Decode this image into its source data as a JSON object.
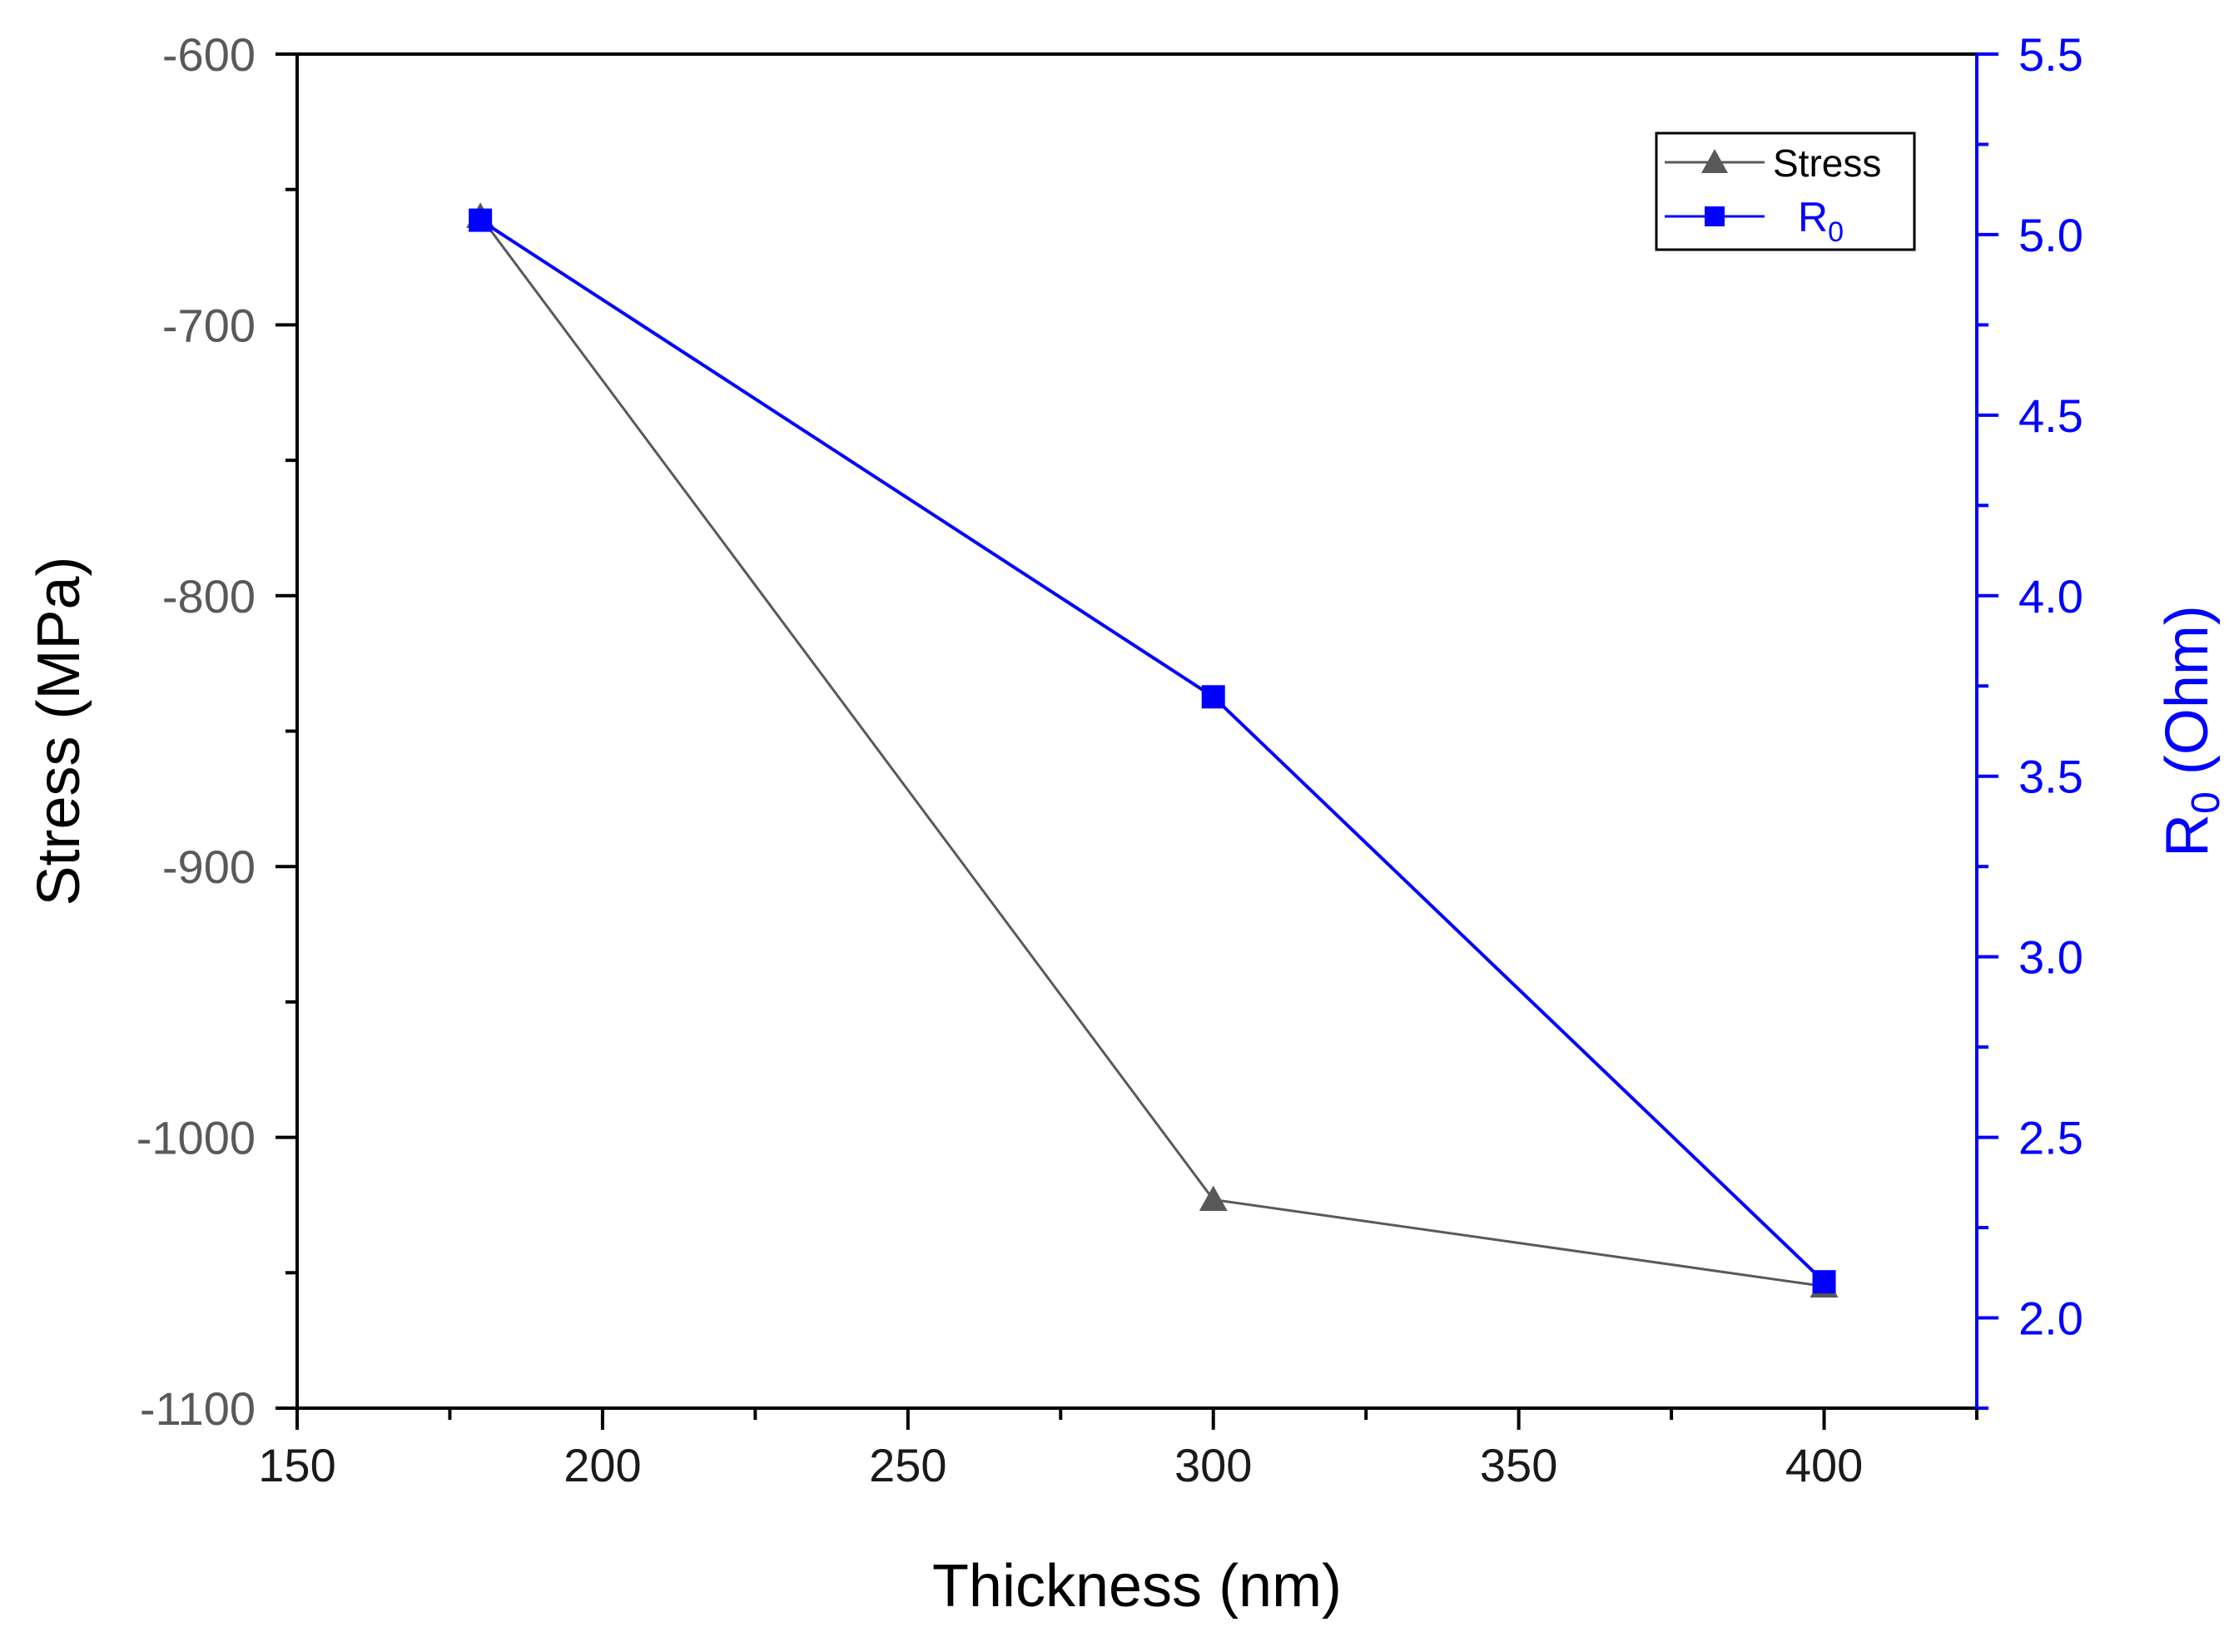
{
  "chart_data": {
    "type": "line",
    "x_axis": {
      "label": "Thickness (nm)",
      "range": [
        150,
        425
      ],
      "major_ticks": [
        150,
        200,
        250,
        300,
        350,
        400
      ],
      "tick_labels": [
        "150",
        "200",
        "250",
        "300",
        "350",
        "400"
      ],
      "minor_step": 25
    },
    "y_axis_left": {
      "label": "Stress (MPa)",
      "range": [
        -1100,
        -600
      ],
      "major_ticks": [
        -600,
        -700,
        -800,
        -900,
        -1000,
        -1100
      ],
      "tick_labels": [
        "-600",
        "-700",
        "-800",
        "-900",
        "-1000",
        "-1100"
      ],
      "minor_step": 50
    },
    "y_axis_right": {
      "label_main": "R",
      "label_sub": "0",
      "label_rest": " (Ohm)",
      "range": [
        1.75,
        5.5
      ],
      "major_ticks": [
        2.0,
        2.5,
        3.0,
        3.5,
        4.0,
        4.5,
        5.0,
        5.5
      ],
      "tick_labels": [
        "2.0",
        "2.5",
        "3.0",
        "3.5",
        "4.0",
        "4.5",
        "5.0",
        "5.5"
      ],
      "minor_step": 0.25
    },
    "series": [
      {
        "name": "Stress",
        "axis": "left",
        "marker": "triangle",
        "color": "#595959",
        "x": [
          180,
          300,
          400
        ],
        "y": [
          -660,
          -1023,
          -1055
        ]
      },
      {
        "name": "R",
        "name_sub": "0",
        "axis": "right",
        "marker": "square",
        "color": "#0000ff",
        "x": [
          180,
          300,
          400
        ],
        "y": [
          5.04,
          3.72,
          2.1
        ]
      }
    ],
    "legend": {
      "position": "top-right",
      "entries": [
        "Stress",
        "R0"
      ]
    },
    "grid": false
  }
}
